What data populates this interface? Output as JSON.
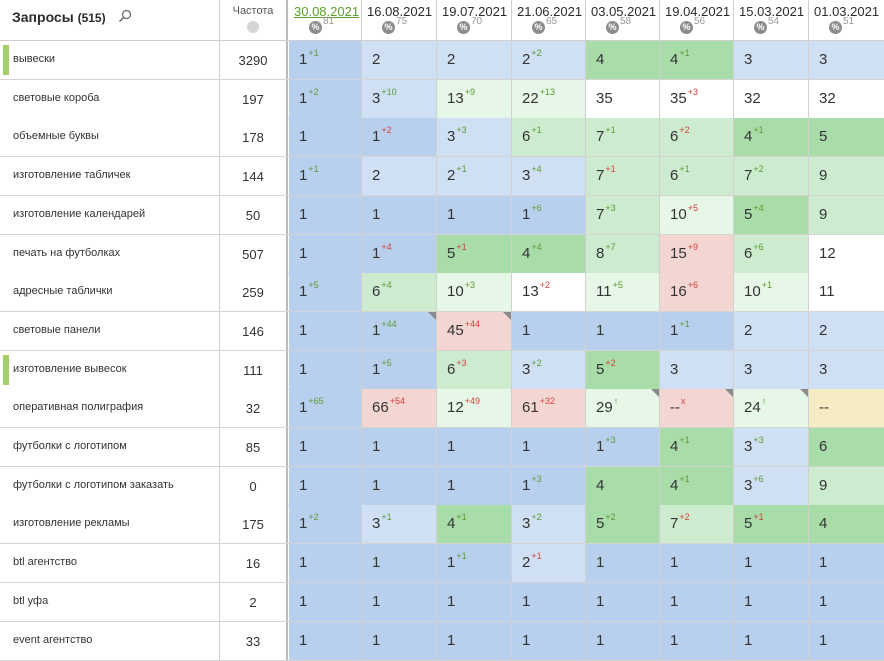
{
  "header": {
    "title": "Запросы",
    "count": "(515)",
    "freq_label": "Частота",
    "dates": [
      {
        "date": "30.08.2021",
        "pct": "81"
      },
      {
        "date": "16.08.2021",
        "pct": "75"
      },
      {
        "date": "19.07.2021",
        "pct": "70"
      },
      {
        "date": "21.06.2021",
        "pct": "65"
      },
      {
        "date": "03.05.2021",
        "pct": "58"
      },
      {
        "date": "19.04.2021",
        "pct": "56"
      },
      {
        "date": "15.03.2021",
        "pct": "54"
      },
      {
        "date": "01.03.2021",
        "pct": "51"
      }
    ],
    "pct_icon": "%"
  },
  "colors": {
    "blue": "#b8d0ee",
    "lblue": "#cfe0f5",
    "green": "#a8dca9",
    "lgreen": "#cdeccf",
    "vlgreen": "#e6f6e7",
    "white": "#ffffff",
    "pink": "#f3d6d2",
    "yellow": "#f5ecc3",
    "marker": "#a3cf66"
  },
  "rows": [
    {
      "query": "вывески",
      "freq": "3290",
      "marked": true,
      "cells": [
        {
          "v": "1",
          "d": "+1",
          "c": "blue"
        },
        {
          "v": "2",
          "d": "",
          "c": "lblue"
        },
        {
          "v": "2",
          "d": "",
          "c": "lblue"
        },
        {
          "v": "2",
          "d": "+2",
          "c": "lblue"
        },
        {
          "v": "4",
          "d": "",
          "c": "green"
        },
        {
          "v": "4",
          "d": "+1",
          "c": "green"
        },
        {
          "v": "3",
          "d": "",
          "c": "lblue"
        },
        {
          "v": "3",
          "d": "",
          "c": "lblue"
        }
      ]
    },
    {
      "query": "световые короба",
      "freq": "197",
      "cells": [
        {
          "v": "1",
          "d": "+2",
          "c": "blue"
        },
        {
          "v": "3",
          "d": "+10",
          "c": "lblue"
        },
        {
          "v": "13",
          "d": "+9",
          "c": "vlgreen"
        },
        {
          "v": "22",
          "d": "+13",
          "c": "vlgreen"
        },
        {
          "v": "35",
          "d": "",
          "c": "white"
        },
        {
          "v": "35",
          "d": "+3",
          "c": "white"
        },
        {
          "v": "32",
          "d": "",
          "c": "white"
        },
        {
          "v": "32",
          "d": "",
          "c": "white"
        }
      ]
    },
    {
      "query": "объемные буквы",
      "freq": "178",
      "cells": [
        {
          "v": "1",
          "d": "",
          "c": "blue"
        },
        {
          "v": "1",
          "d": "+2",
          "c": "blue"
        },
        {
          "v": "3",
          "d": "+3",
          "c": "lblue"
        },
        {
          "v": "6",
          "d": "+1",
          "c": "lgreen"
        },
        {
          "v": "7",
          "d": "+1",
          "c": "lgreen"
        },
        {
          "v": "6",
          "d": "+2",
          "c": "lgreen"
        },
        {
          "v": "4",
          "d": "+1",
          "c": "green"
        },
        {
          "v": "5",
          "d": "",
          "c": "green"
        }
      ]
    },
    {
      "query": "изготовление табличек",
      "freq": "144",
      "cells": [
        {
          "v": "1",
          "d": "+1",
          "c": "blue"
        },
        {
          "v": "2",
          "d": "",
          "c": "lblue"
        },
        {
          "v": "2",
          "d": "+1",
          "c": "lblue"
        },
        {
          "v": "3",
          "d": "+4",
          "c": "lblue"
        },
        {
          "v": "7",
          "d": "+1",
          "c": "lgreen"
        },
        {
          "v": "6",
          "d": "+1",
          "c": "lgreen"
        },
        {
          "v": "7",
          "d": "+2",
          "c": "lgreen"
        },
        {
          "v": "9",
          "d": "",
          "c": "lgreen"
        }
      ]
    },
    {
      "query": "изготовление календарей",
      "freq": "50",
      "cells": [
        {
          "v": "1",
          "d": "",
          "c": "blue"
        },
        {
          "v": "1",
          "d": "",
          "c": "blue"
        },
        {
          "v": "1",
          "d": "",
          "c": "blue"
        },
        {
          "v": "1",
          "d": "+6",
          "c": "blue"
        },
        {
          "v": "7",
          "d": "+3",
          "c": "lgreen"
        },
        {
          "v": "10",
          "d": "+5",
          "c": "vlgreen"
        },
        {
          "v": "5",
          "d": "+4",
          "c": "green"
        },
        {
          "v": "9",
          "d": "",
          "c": "lgreen"
        }
      ]
    },
    {
      "query": "печать на футболках",
      "freq": "507",
      "cells": [
        {
          "v": "1",
          "d": "",
          "c": "blue"
        },
        {
          "v": "1",
          "d": "+4",
          "c": "blue"
        },
        {
          "v": "5",
          "d": "+1",
          "c": "green"
        },
        {
          "v": "4",
          "d": "+4",
          "c": "green"
        },
        {
          "v": "8",
          "d": "+7",
          "c": "lgreen"
        },
        {
          "v": "15",
          "d": "+9",
          "c": "pink"
        },
        {
          "v": "6",
          "d": "+6",
          "c": "lgreen"
        },
        {
          "v": "12",
          "d": "",
          "c": "white"
        }
      ]
    },
    {
      "query": "адресные таблички",
      "freq": "259",
      "cells": [
        {
          "v": "1",
          "d": "+5",
          "c": "blue"
        },
        {
          "v": "6",
          "d": "+4",
          "c": "lgreen"
        },
        {
          "v": "10",
          "d": "+3",
          "c": "vlgreen"
        },
        {
          "v": "13",
          "d": "+2",
          "c": "white"
        },
        {
          "v": "11",
          "d": "+5",
          "c": "vlgreen"
        },
        {
          "v": "16",
          "d": "+6",
          "c": "pink"
        },
        {
          "v": "10",
          "d": "+1",
          "c": "vlgreen"
        },
        {
          "v": "11",
          "d": "",
          "c": "white"
        }
      ]
    },
    {
      "query": "световые панели",
      "freq": "146",
      "cells": [
        {
          "v": "1",
          "d": "",
          "c": "blue"
        },
        {
          "v": "1",
          "d": "+44",
          "c": "blue",
          "corner": true
        },
        {
          "v": "45",
          "d": "+44",
          "c": "pink",
          "corner": true
        },
        {
          "v": "1",
          "d": "",
          "c": "blue"
        },
        {
          "v": "1",
          "d": "",
          "c": "blue"
        },
        {
          "v": "1",
          "d": "+1",
          "c": "blue"
        },
        {
          "v": "2",
          "d": "",
          "c": "lblue"
        },
        {
          "v": "2",
          "d": "",
          "c": "lblue"
        }
      ]
    },
    {
      "query": "изготовление вывесок",
      "freq": "111",
      "marked": true,
      "cells": [
        {
          "v": "1",
          "d": "",
          "c": "blue"
        },
        {
          "v": "1",
          "d": "+5",
          "c": "blue"
        },
        {
          "v": "6",
          "d": "+3",
          "c": "lgreen"
        },
        {
          "v": "3",
          "d": "+2",
          "c": "lblue"
        },
        {
          "v": "5",
          "d": "+2",
          "c": "green"
        },
        {
          "v": "3",
          "d": "",
          "c": "lblue"
        },
        {
          "v": "3",
          "d": "",
          "c": "lblue"
        },
        {
          "v": "3",
          "d": "",
          "c": "lblue"
        }
      ]
    },
    {
      "query": "оперативная полиграфия",
      "freq": "32",
      "cells": [
        {
          "v": "1",
          "d": "+65",
          "c": "blue"
        },
        {
          "v": "66",
          "d": "+54",
          "c": "pink"
        },
        {
          "v": "12",
          "d": "+49",
          "c": "vlgreen"
        },
        {
          "v": "61",
          "d": "+32",
          "c": "pink"
        },
        {
          "v": "29",
          "d": "↑",
          "c": "vlgreen",
          "corner": true
        },
        {
          "v": "--",
          "d": "x",
          "c": "pink",
          "corner": true
        },
        {
          "v": "24",
          "d": "↑",
          "c": "vlgreen",
          "corner": true
        },
        {
          "v": "--",
          "d": "",
          "c": "yellow"
        }
      ]
    },
    {
      "query": "футболки с логотипом",
      "freq": "85",
      "cells": [
        {
          "v": "1",
          "d": "",
          "c": "blue"
        },
        {
          "v": "1",
          "d": "",
          "c": "blue"
        },
        {
          "v": "1",
          "d": "",
          "c": "blue"
        },
        {
          "v": "1",
          "d": "",
          "c": "blue"
        },
        {
          "v": "1",
          "d": "+3",
          "c": "blue"
        },
        {
          "v": "4",
          "d": "+1",
          "c": "green"
        },
        {
          "v": "3",
          "d": "+3",
          "c": "lblue"
        },
        {
          "v": "6",
          "d": "",
          "c": "green"
        }
      ]
    },
    {
      "query": "футболки с логотипом заказать",
      "freq": "0",
      "cells": [
        {
          "v": "1",
          "d": "",
          "c": "blue"
        },
        {
          "v": "1",
          "d": "",
          "c": "blue"
        },
        {
          "v": "1",
          "d": "",
          "c": "blue"
        },
        {
          "v": "1",
          "d": "+3",
          "c": "blue"
        },
        {
          "v": "4",
          "d": "",
          "c": "green"
        },
        {
          "v": "4",
          "d": "+1",
          "c": "green"
        },
        {
          "v": "3",
          "d": "+6",
          "c": "lblue"
        },
        {
          "v": "9",
          "d": "",
          "c": "lgreen"
        }
      ]
    },
    {
      "query": "изготовление рекламы",
      "freq": "175",
      "cells": [
        {
          "v": "1",
          "d": "+2",
          "c": "blue"
        },
        {
          "v": "3",
          "d": "+1",
          "c": "lblue"
        },
        {
          "v": "4",
          "d": "+1",
          "c": "green"
        },
        {
          "v": "3",
          "d": "+2",
          "c": "lblue"
        },
        {
          "v": "5",
          "d": "+2",
          "c": "green"
        },
        {
          "v": "7",
          "d": "+2",
          "c": "lgreen"
        },
        {
          "v": "5",
          "d": "+1",
          "c": "green"
        },
        {
          "v": "4",
          "d": "",
          "c": "green"
        }
      ]
    },
    {
      "query": "btl агентство",
      "freq": "16",
      "cells": [
        {
          "v": "1",
          "d": "",
          "c": "blue"
        },
        {
          "v": "1",
          "d": "",
          "c": "blue"
        },
        {
          "v": "1",
          "d": "+1",
          "c": "blue"
        },
        {
          "v": "2",
          "d": "+1",
          "c": "lblue"
        },
        {
          "v": "1",
          "d": "",
          "c": "blue"
        },
        {
          "v": "1",
          "d": "",
          "c": "blue"
        },
        {
          "v": "1",
          "d": "",
          "c": "blue"
        },
        {
          "v": "1",
          "d": "",
          "c": "blue"
        }
      ]
    },
    {
      "query": "btl уфа",
      "freq": "2",
      "cells": [
        {
          "v": "1",
          "d": "",
          "c": "blue"
        },
        {
          "v": "1",
          "d": "",
          "c": "blue"
        },
        {
          "v": "1",
          "d": "",
          "c": "blue"
        },
        {
          "v": "1",
          "d": "",
          "c": "blue"
        },
        {
          "v": "1",
          "d": "",
          "c": "blue"
        },
        {
          "v": "1",
          "d": "",
          "c": "blue"
        },
        {
          "v": "1",
          "d": "",
          "c": "blue"
        },
        {
          "v": "1",
          "d": "",
          "c": "blue"
        }
      ]
    },
    {
      "query": "event агентство",
      "freq": "33",
      "cells": [
        {
          "v": "1",
          "d": "",
          "c": "blue"
        },
        {
          "v": "1",
          "d": "",
          "c": "blue"
        },
        {
          "v": "1",
          "d": "",
          "c": "blue"
        },
        {
          "v": "1",
          "d": "",
          "c": "blue"
        },
        {
          "v": "1",
          "d": "",
          "c": "blue"
        },
        {
          "v": "1",
          "d": "",
          "c": "blue"
        },
        {
          "v": "1",
          "d": "",
          "c": "blue"
        },
        {
          "v": "1",
          "d": "",
          "c": "blue"
        }
      ]
    }
  ]
}
